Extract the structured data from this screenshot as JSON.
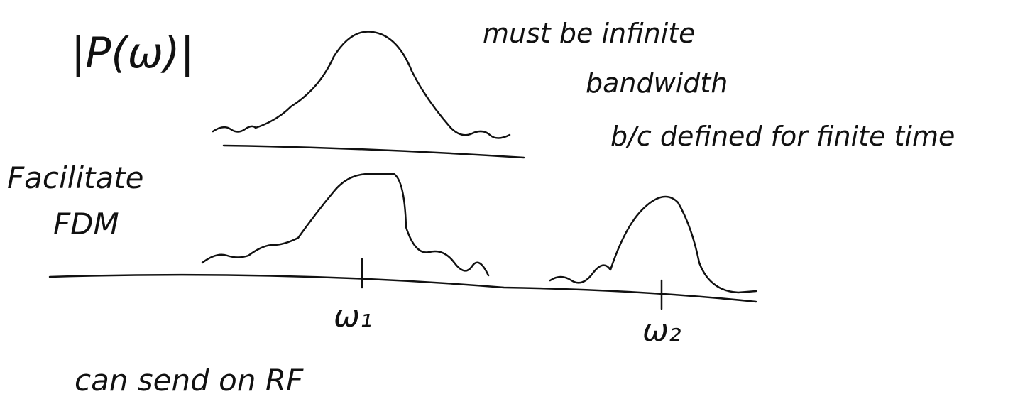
{
  "spectrum_label": "|P(ω)|",
  "annotation": [
    "must be infinite",
    "bandwidth",
    "b/c defined for finite time"
  ],
  "facilitate": [
    "Facilitate",
    "FDM"
  ],
  "carriers": [
    "ω₁",
    "ω₂"
  ],
  "footer": "can send on RF"
}
